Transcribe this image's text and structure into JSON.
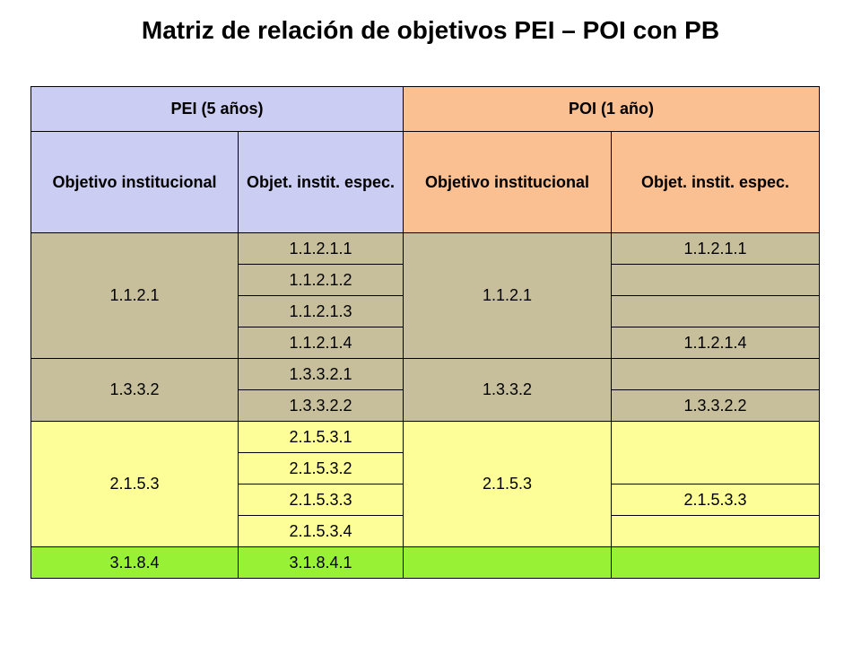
{
  "title": "Matriz de relación de objetivos PEI – POI con PB",
  "colors": {
    "pei_header": "#cccdf2",
    "poi_header": "#fbc092",
    "group_tan": "#c7bf9c",
    "group_yellow": "#fefe98",
    "group_green": "#99f135"
  },
  "header": {
    "pei": "PEI (5 años)",
    "poi": "POI (1 año)",
    "pei_obj": "Objetivo institucional",
    "pei_spec": "Objet. instit. espec.",
    "poi_obj": "Objetivo institucional",
    "poi_spec": "Objet. instit. espec."
  },
  "groups": [
    {
      "pei_obj": "1.1.2.1",
      "poi_obj": "1.1.2.1",
      "rows": [
        {
          "pei_spec": "1.1.2.1.1",
          "poi_spec": "1.1.2.1.1"
        },
        {
          "pei_spec": "1.1.2.1.2",
          "poi_spec": ""
        },
        {
          "pei_spec": "1.1.2.1.3",
          "poi_spec": ""
        },
        {
          "pei_spec": "1.1.2.1.4",
          "poi_spec": "1.1.2.1.4"
        }
      ]
    },
    {
      "pei_obj": "1.3.3.2",
      "poi_obj": "1.3.3.2",
      "rows": [
        {
          "pei_spec": "1.3.3.2.1",
          "poi_spec": ""
        },
        {
          "pei_spec": "1.3.3.2.2",
          "poi_spec": "1.3.3.2.2"
        }
      ]
    },
    {
      "pei_obj": "2.1.5.3",
      "poi_obj": "2.1.5.3",
      "rows": [
        {
          "pei_spec": "2.1.5.3.1"
        },
        {
          "pei_spec": "2.1.5.3.2"
        },
        {
          "pei_spec": "2.1.5.3.3",
          "poi_spec": "2.1.5.3.3"
        },
        {
          "pei_spec": "2.1.5.3.4",
          "poi_spec": ""
        }
      ],
      "poi_spec_top_merged": ""
    },
    {
      "pei_obj": "3.1.8.4",
      "poi_obj": "",
      "rows": [
        {
          "pei_spec": "3.1.8.4.1",
          "poi_spec": ""
        }
      ]
    }
  ]
}
